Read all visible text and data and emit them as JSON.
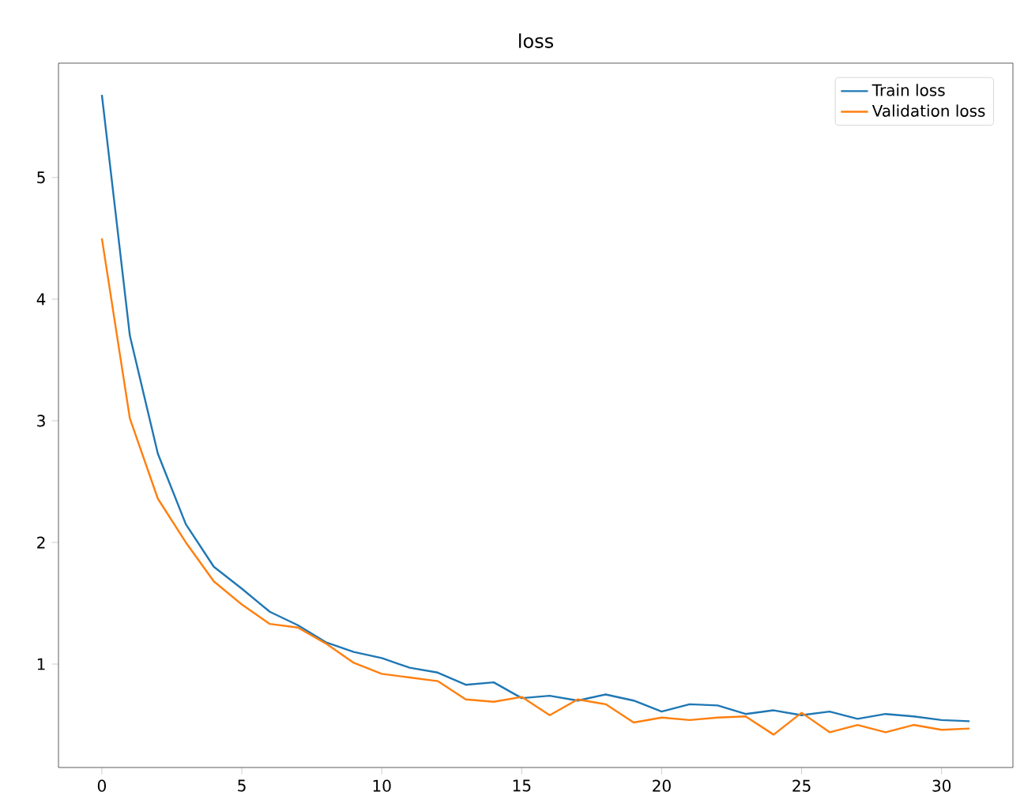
{
  "chart_data": {
    "type": "line",
    "title": "loss",
    "x": [
      0,
      1,
      2,
      3,
      4,
      5,
      6,
      7,
      8,
      9,
      10,
      11,
      12,
      13,
      14,
      15,
      16,
      17,
      18,
      19,
      20,
      21,
      22,
      23,
      24,
      25,
      26,
      27,
      28,
      29,
      30,
      31
    ],
    "series": [
      {
        "name": "Train loss",
        "color": "#1f77b4",
        "values": [
          5.68,
          3.7,
          2.73,
          2.15,
          1.8,
          1.62,
          1.43,
          1.32,
          1.18,
          1.1,
          1.05,
          0.97,
          0.93,
          0.83,
          0.85,
          0.72,
          0.74,
          0.7,
          0.75,
          0.7,
          0.61,
          0.67,
          0.66,
          0.59,
          0.62,
          0.58,
          0.61,
          0.55,
          0.59,
          0.57,
          0.54,
          0.53
        ]
      },
      {
        "name": "Validation loss",
        "color": "#ff7f0e",
        "values": [
          4.5,
          3.02,
          2.36,
          2.0,
          1.68,
          1.49,
          1.33,
          1.3,
          1.17,
          1.01,
          0.92,
          0.89,
          0.86,
          0.71,
          0.69,
          0.73,
          0.58,
          0.71,
          0.67,
          0.52,
          0.56,
          0.54,
          0.56,
          0.57,
          0.42,
          0.6,
          0.44,
          0.5,
          0.44,
          0.5,
          0.46,
          0.47
        ]
      }
    ],
    "xlim": [
      -1.55,
      32.55
    ],
    "ylim": [
      0.15,
      5.94
    ],
    "xticks": [
      0,
      5,
      10,
      15,
      20,
      25,
      30
    ],
    "yticks": [
      1,
      2,
      3,
      4,
      5
    ],
    "legend": "top right",
    "grid": false
  }
}
